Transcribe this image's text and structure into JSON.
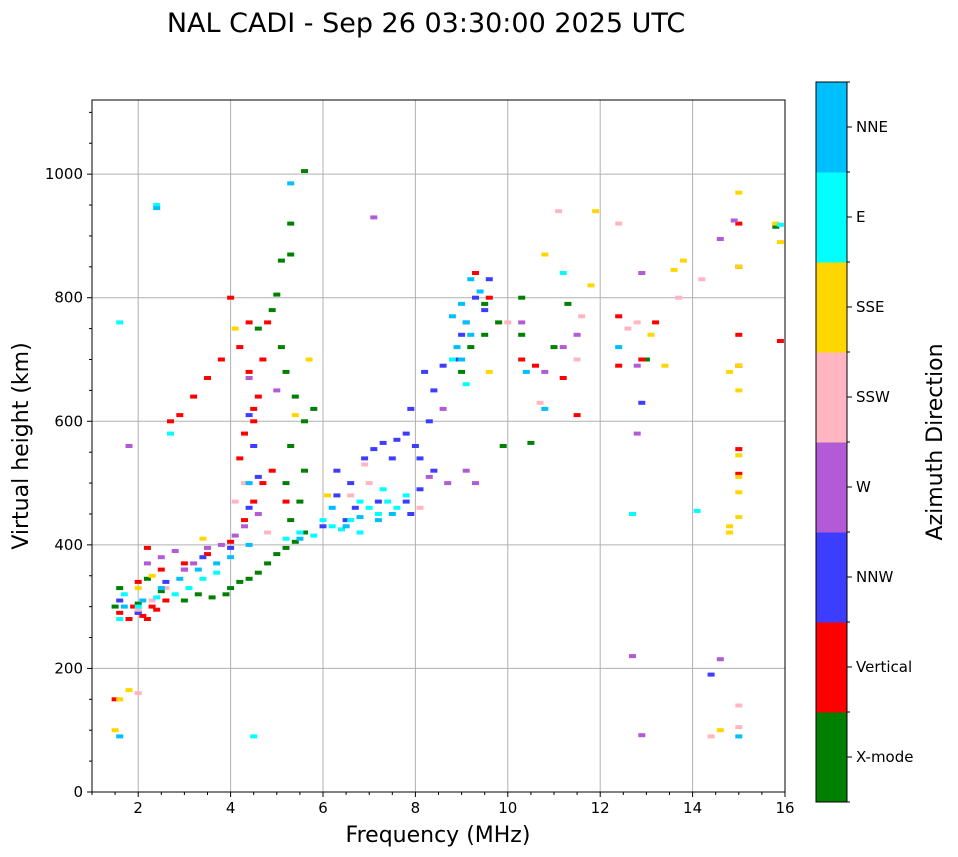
{
  "chart_data": {
    "type": "scatter",
    "title": "NAL CADI - Sep 26 03:30:00 2025 UTC",
    "xlabel": "Frequency (MHz)",
    "ylabel": "Virtual height (km)",
    "xlim": [
      1,
      16
    ],
    "ylim": [
      0,
      1120
    ],
    "xticks": [
      2,
      4,
      6,
      8,
      10,
      12,
      14,
      16
    ],
    "yticks": [
      0,
      200,
      400,
      600,
      800,
      1000
    ],
    "grid": true,
    "colorbar": {
      "label": "Azimuth Direction",
      "categories": [
        {
          "name": "X-mode",
          "color": "#008000"
        },
        {
          "name": "Vertical",
          "color": "#ff0000"
        },
        {
          "name": "NNW",
          "color": "#3d3dff"
        },
        {
          "name": "W",
          "color": "#b35ad6"
        },
        {
          "name": "SSW",
          "color": "#ffb6c1"
        },
        {
          "name": "SSE",
          "color": "#ffd700"
        },
        {
          "name": "E",
          "color": "#00ffff"
        },
        {
          "name": "NNE",
          "color": "#00bfff"
        }
      ]
    },
    "series": [
      {
        "name": "X-mode",
        "points": [
          [
            1.5,
            300
          ],
          [
            1.6,
            330
          ],
          [
            2.0,
            305
          ],
          [
            2.2,
            345
          ],
          [
            2.5,
            325
          ],
          [
            3.0,
            310
          ],
          [
            3.3,
            320
          ],
          [
            3.6,
            315
          ],
          [
            3.9,
            320
          ],
          [
            4.0,
            330
          ],
          [
            4.2,
            340
          ],
          [
            4.4,
            345
          ],
          [
            4.6,
            355
          ],
          [
            4.8,
            370
          ],
          [
            5.0,
            385
          ],
          [
            5.2,
            395
          ],
          [
            5.4,
            405
          ],
          [
            5.6,
            420
          ],
          [
            5.3,
            440
          ],
          [
            5.5,
            470
          ],
          [
            5.2,
            500
          ],
          [
            5.6,
            520
          ],
          [
            5.3,
            560
          ],
          [
            5.6,
            600
          ],
          [
            5.8,
            620
          ],
          [
            5.4,
            640
          ],
          [
            5.2,
            680
          ],
          [
            5.1,
            720
          ],
          [
            4.9,
            780
          ],
          [
            5.0,
            805
          ],
          [
            5.3,
            870
          ],
          [
            5.1,
            860
          ],
          [
            5.3,
            920
          ],
          [
            5.6,
            1005
          ],
          [
            4.6,
            750
          ],
          [
            9.0,
            680
          ],
          [
            9.2,
            720
          ],
          [
            9.5,
            740
          ],
          [
            9.5,
            790
          ],
          [
            9.8,
            760
          ],
          [
            10.3,
            800
          ],
          [
            10.5,
            565
          ],
          [
            11.3,
            790
          ],
          [
            11.0,
            720
          ],
          [
            10.3,
            740
          ],
          [
            15.8,
            915
          ],
          [
            13.0,
            700
          ],
          [
            9.9,
            560
          ]
        ]
      },
      {
        "name": "Vertical",
        "points": [
          [
            1.6,
            290
          ],
          [
            1.8,
            280
          ],
          [
            1.9,
            300
          ],
          [
            2.0,
            290
          ],
          [
            2.1,
            285
          ],
          [
            2.2,
            280
          ],
          [
            2.3,
            300
          ],
          [
            2.4,
            295
          ],
          [
            2.6,
            310
          ],
          [
            2.2,
            395
          ],
          [
            2.0,
            340
          ],
          [
            1.5,
            150
          ],
          [
            2.5,
            360
          ],
          [
            3.0,
            370
          ],
          [
            3.5,
            385
          ],
          [
            4.0,
            405
          ],
          [
            4.3,
            440
          ],
          [
            4.5,
            470
          ],
          [
            4.7,
            500
          ],
          [
            4.9,
            520
          ],
          [
            5.2,
            470
          ],
          [
            4.2,
            540
          ],
          [
            4.3,
            580
          ],
          [
            4.5,
            600
          ],
          [
            4.6,
            640
          ],
          [
            4.4,
            680
          ],
          [
            4.7,
            700
          ],
          [
            4.8,
            760
          ],
          [
            4.2,
            720
          ],
          [
            4.0,
            800
          ],
          [
            3.8,
            700
          ],
          [
            3.5,
            670
          ],
          [
            3.2,
            640
          ],
          [
            2.9,
            610
          ],
          [
            2.7,
            600
          ],
          [
            4.4,
            760
          ],
          [
            4.5,
            620
          ],
          [
            9.3,
            840
          ],
          [
            9.6,
            800
          ],
          [
            10.3,
            700
          ],
          [
            10.6,
            690
          ],
          [
            11.2,
            670
          ],
          [
            11.5,
            610
          ],
          [
            12.4,
            770
          ],
          [
            12.4,
            690
          ],
          [
            12.9,
            700
          ],
          [
            13.2,
            760
          ],
          [
            15.0,
            920
          ],
          [
            15.0,
            850
          ],
          [
            15.0,
            740
          ],
          [
            15.0,
            690
          ],
          [
            15.0,
            555
          ],
          [
            15.0,
            515
          ],
          [
            15.9,
            730
          ]
        ]
      },
      {
        "name": "NNW",
        "points": [
          [
            1.6,
            310
          ],
          [
            2.0,
            290
          ],
          [
            2.6,
            340
          ],
          [
            3.0,
            360
          ],
          [
            3.4,
            380
          ],
          [
            4.0,
            395
          ],
          [
            4.4,
            460
          ],
          [
            4.6,
            510
          ],
          [
            6.0,
            430
          ],
          [
            6.3,
            480
          ],
          [
            6.3,
            520
          ],
          [
            6.6,
            500
          ],
          [
            6.7,
            460
          ],
          [
            6.9,
            540
          ],
          [
            7.1,
            555
          ],
          [
            7.2,
            470
          ],
          [
            7.3,
            565
          ],
          [
            7.5,
            540
          ],
          [
            7.6,
            570
          ],
          [
            7.8,
            580
          ],
          [
            7.9,
            620
          ],
          [
            8.0,
            560
          ],
          [
            8.1,
            540
          ],
          [
            8.3,
            600
          ],
          [
            8.4,
            650
          ],
          [
            8.1,
            490
          ],
          [
            8.4,
            520
          ],
          [
            8.6,
            690
          ],
          [
            8.9,
            700
          ],
          [
            9.0,
            740
          ],
          [
            9.1,
            760
          ],
          [
            9.3,
            800
          ],
          [
            9.5,
            780
          ],
          [
            9.6,
            830
          ],
          [
            7.8,
            470
          ],
          [
            7.9,
            450
          ],
          [
            6.5,
            440
          ],
          [
            8.2,
            680
          ],
          [
            4.4,
            610
          ],
          [
            4.5,
            560
          ],
          [
            12.9,
            630
          ],
          [
            14.4,
            190
          ]
        ]
      },
      {
        "name": "W",
        "points": [
          [
            2.8,
            390
          ],
          [
            3.0,
            360
          ],
          [
            3.2,
            370
          ],
          [
            3.5,
            395
          ],
          [
            3.8,
            400
          ],
          [
            4.1,
            415
          ],
          [
            4.3,
            430
          ],
          [
            4.6,
            450
          ],
          [
            2.2,
            370
          ],
          [
            2.5,
            380
          ],
          [
            1.8,
            560
          ],
          [
            4.4,
            670
          ],
          [
            5.0,
            650
          ],
          [
            8.3,
            510
          ],
          [
            8.6,
            620
          ],
          [
            8.7,
            500
          ],
          [
            9.1,
            520
          ],
          [
            9.3,
            500
          ],
          [
            10.8,
            680
          ],
          [
            11.2,
            720
          ],
          [
            11.5,
            740
          ],
          [
            12.9,
            840
          ],
          [
            12.8,
            580
          ],
          [
            12.8,
            690
          ],
          [
            14.6,
            895
          ],
          [
            14.9,
            925
          ],
          [
            14.6,
            215
          ],
          [
            12.7,
            220
          ],
          [
            12.9,
            92
          ],
          [
            7.1,
            930
          ],
          [
            10.3,
            760
          ]
        ]
      },
      {
        "name": "SSW",
        "points": [
          [
            2.0,
            295
          ],
          [
            2.3,
            310
          ],
          [
            2.6,
            330
          ],
          [
            4.1,
            470
          ],
          [
            4.3,
            500
          ],
          [
            4.8,
            420
          ],
          [
            6.6,
            480
          ],
          [
            7.0,
            500
          ],
          [
            8.1,
            460
          ],
          [
            10.0,
            760
          ],
          [
            10.7,
            630
          ],
          [
            11.1,
            940
          ],
          [
            11.5,
            700
          ],
          [
            11.6,
            770
          ],
          [
            12.4,
            920
          ],
          [
            12.6,
            750
          ],
          [
            12.8,
            760
          ],
          [
            13.7,
            800
          ],
          [
            14.2,
            830
          ],
          [
            14.4,
            90
          ],
          [
            15.0,
            140
          ],
          [
            15.0,
            105
          ],
          [
            6.9,
            530
          ],
          [
            2.0,
            160
          ]
        ]
      },
      {
        "name": "SSE",
        "points": [
          [
            1.6,
            150
          ],
          [
            1.8,
            165
          ],
          [
            1.5,
            100
          ],
          [
            2.0,
            330
          ],
          [
            2.3,
            350
          ],
          [
            3.4,
            410
          ],
          [
            4.1,
            750
          ],
          [
            5.4,
            610
          ],
          [
            5.7,
            700
          ],
          [
            6.1,
            480
          ],
          [
            9.6,
            680
          ],
          [
            10.8,
            870
          ],
          [
            11.9,
            940
          ],
          [
            13.1,
            740
          ],
          [
            13.4,
            690
          ],
          [
            13.6,
            845
          ],
          [
            13.8,
            860
          ],
          [
            14.6,
            100
          ],
          [
            14.8,
            680
          ],
          [
            14.8,
            430
          ],
          [
            14.8,
            420
          ],
          [
            15.0,
            970
          ],
          [
            15.0,
            850
          ],
          [
            15.0,
            690
          ],
          [
            15.0,
            650
          ],
          [
            15.0,
            545
          ],
          [
            15.0,
            510
          ],
          [
            15.0,
            485
          ],
          [
            15.0,
            445
          ],
          [
            15.9,
            890
          ],
          [
            15.8,
            920
          ],
          [
            11.8,
            820
          ]
        ]
      },
      {
        "name": "E",
        "points": [
          [
            1.6,
            280
          ],
          [
            1.7,
            320
          ],
          [
            2.0,
            300
          ],
          [
            2.4,
            315
          ],
          [
            2.8,
            320
          ],
          [
            3.1,
            330
          ],
          [
            3.4,
            345
          ],
          [
            3.7,
            355
          ],
          [
            1.6,
            760
          ],
          [
            2.4,
            950
          ],
          [
            2.7,
            580
          ],
          [
            4.5,
            90
          ],
          [
            5.2,
            410
          ],
          [
            5.5,
            420
          ],
          [
            5.8,
            415
          ],
          [
            6.0,
            440
          ],
          [
            6.2,
            430
          ],
          [
            6.4,
            425
          ],
          [
            6.6,
            440
          ],
          [
            6.8,
            420
          ],
          [
            7.0,
            460
          ],
          [
            7.2,
            450
          ],
          [
            7.4,
            470
          ],
          [
            7.6,
            460
          ],
          [
            7.8,
            480
          ],
          [
            6.8,
            470
          ],
          [
            7.3,
            490
          ],
          [
            11.2,
            840
          ],
          [
            12.7,
            450
          ],
          [
            14.1,
            455
          ],
          [
            15.9,
            918
          ],
          [
            8.8,
            700
          ],
          [
            9.1,
            660
          ]
        ]
      },
      {
        "name": "NNE",
        "points": [
          [
            1.7,
            300
          ],
          [
            2.1,
            310
          ],
          [
            2.5,
            330
          ],
          [
            2.9,
            345
          ],
          [
            3.3,
            360
          ],
          [
            3.7,
            370
          ],
          [
            4.0,
            380
          ],
          [
            4.4,
            400
          ],
          [
            2.4,
            945
          ],
          [
            5.3,
            985
          ],
          [
            4.4,
            500
          ],
          [
            5.5,
            410
          ],
          [
            6.2,
            460
          ],
          [
            6.5,
            430
          ],
          [
            6.8,
            445
          ],
          [
            7.2,
            440
          ],
          [
            7.5,
            450
          ],
          [
            9.0,
            700
          ],
          [
            9.2,
            740
          ],
          [
            8.8,
            770
          ],
          [
            9.0,
            790
          ],
          [
            9.2,
            830
          ],
          [
            9.4,
            810
          ],
          [
            8.9,
            720
          ],
          [
            9.1,
            760
          ],
          [
            10.4,
            680
          ],
          [
            10.8,
            620
          ],
          [
            12.4,
            720
          ],
          [
            15.0,
            90
          ],
          [
            1.6,
            90
          ]
        ]
      }
    ]
  }
}
